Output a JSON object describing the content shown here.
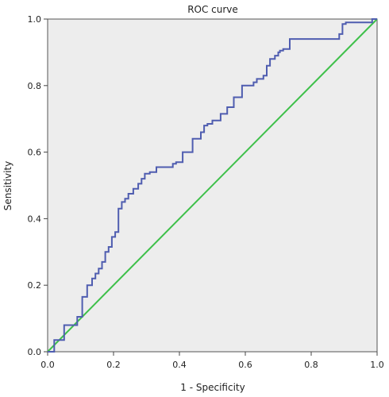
{
  "chart_data": {
    "type": "line",
    "title": "ROC curve",
    "xlabel": "1 - Specificity",
    "ylabel": "Sensitivity",
    "xlim": [
      0,
      1
    ],
    "ylim": [
      0,
      1
    ],
    "xticks": [
      "0.0",
      "0.2",
      "0.4",
      "0.6",
      "0.8",
      "1.0"
    ],
    "yticks": [
      "0.0",
      "0.2",
      "0.4",
      "0.6",
      "0.8",
      "1.0"
    ],
    "grid": false,
    "colors": {
      "roc_curve": "#4f5db0",
      "reference_line": "#3ec04a",
      "plot_background": "#ededed"
    },
    "series": [
      {
        "x": [
          0.0,
          0.02,
          0.02,
          0.05,
          0.05,
          0.09,
          0.09,
          0.105,
          0.105,
          0.12,
          0.12,
          0.135,
          0.135,
          0.145,
          0.145,
          0.155,
          0.155,
          0.165,
          0.165,
          0.175,
          0.175,
          0.185,
          0.185,
          0.195,
          0.195,
          0.205,
          0.205,
          0.215,
          0.215,
          0.225,
          0.225,
          0.235,
          0.235,
          0.245,
          0.245,
          0.26,
          0.26,
          0.275,
          0.275,
          0.285,
          0.285,
          0.295,
          0.295,
          0.31,
          0.31,
          0.33,
          0.33,
          0.38,
          0.38,
          0.39,
          0.39,
          0.41,
          0.41,
          0.44,
          0.44,
          0.465,
          0.465,
          0.475,
          0.475,
          0.485,
          0.485,
          0.5,
          0.5,
          0.525,
          0.525,
          0.545,
          0.545,
          0.565,
          0.565,
          0.59,
          0.59,
          0.625,
          0.625,
          0.635,
          0.635,
          0.655,
          0.655,
          0.665,
          0.665,
          0.675,
          0.675,
          0.69,
          0.69,
          0.7,
          0.7,
          0.705,
          0.705,
          0.715,
          0.715,
          0.735,
          0.735,
          0.885,
          0.885,
          0.895,
          0.895,
          0.905,
          0.905,
          0.985,
          0.985,
          1.0
        ],
        "y": [
          0.0,
          0.0,
          0.035,
          0.035,
          0.08,
          0.08,
          0.105,
          0.105,
          0.165,
          0.165,
          0.2,
          0.2,
          0.22,
          0.22,
          0.235,
          0.235,
          0.25,
          0.25,
          0.27,
          0.27,
          0.3,
          0.3,
          0.315,
          0.315,
          0.345,
          0.345,
          0.36,
          0.36,
          0.43,
          0.43,
          0.45,
          0.45,
          0.46,
          0.46,
          0.475,
          0.475,
          0.49,
          0.49,
          0.505,
          0.505,
          0.52,
          0.52,
          0.535,
          0.535,
          0.54,
          0.54,
          0.555,
          0.555,
          0.565,
          0.565,
          0.57,
          0.57,
          0.6,
          0.6,
          0.64,
          0.64,
          0.66,
          0.66,
          0.68,
          0.68,
          0.685,
          0.685,
          0.695,
          0.695,
          0.715,
          0.715,
          0.735,
          0.735,
          0.765,
          0.765,
          0.8,
          0.8,
          0.81,
          0.81,
          0.82,
          0.82,
          0.83,
          0.83,
          0.86,
          0.86,
          0.88,
          0.88,
          0.89,
          0.89,
          0.9,
          0.9,
          0.905,
          0.905,
          0.91,
          0.91,
          0.94,
          0.94,
          0.955,
          0.955,
          0.985,
          0.985,
          0.99,
          0.99,
          1.0,
          1.0
        ]
      },
      {
        "x": [
          0.0,
          1.0
        ],
        "y": [
          0.0,
          1.0
        ]
      }
    ]
  }
}
